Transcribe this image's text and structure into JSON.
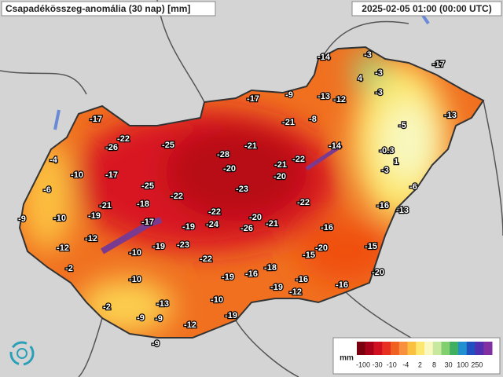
{
  "header": {
    "title": "Csapadékösszeg-anomália (30 nap) [mm]",
    "timestamp": "2025-02-05 01:00 (00:00 UTC)"
  },
  "stations": [
    -14,
    -3,
    4,
    -3,
    -17,
    -9,
    -13,
    -12,
    -3,
    -17,
    -17,
    -21,
    -8,
    -5,
    -13,
    -22,
    -26,
    -25,
    -21,
    -14,
    -0.3,
    -4,
    -28,
    1,
    -20,
    -21,
    -22,
    -10,
    -17,
    -20,
    -3,
    -25,
    -23,
    -6,
    -22,
    -6,
    -21,
    -18,
    -22,
    -16,
    -13,
    -9,
    -10,
    -19,
    -22,
    -20,
    -21,
    -17,
    -19,
    -24,
    -26,
    -16,
    -12,
    -12,
    -23,
    -10,
    -19,
    -20,
    -15,
    -15,
    -22,
    -18,
    -2,
    -10,
    -19,
    -16,
    -16,
    -20,
    -19,
    -12,
    -16,
    -2,
    -13,
    -10,
    -9,
    -9,
    -19,
    -12,
    -9
  ],
  "legend": {
    "unit": "mm",
    "ticks": [
      -100,
      -30,
      -10,
      -4,
      2,
      8,
      30,
      100,
      250
    ],
    "colors": [
      "#7a0010",
      "#a80018",
      "#d01020",
      "#e83020",
      "#f06020",
      "#f89040",
      "#fcc040",
      "#fce870",
      "#f8f8c0",
      "#c8e8a0",
      "#80d070",
      "#40b060",
      "#2090d0",
      "#2050c0",
      "#5030b0",
      "#8030a0"
    ]
  }
}
